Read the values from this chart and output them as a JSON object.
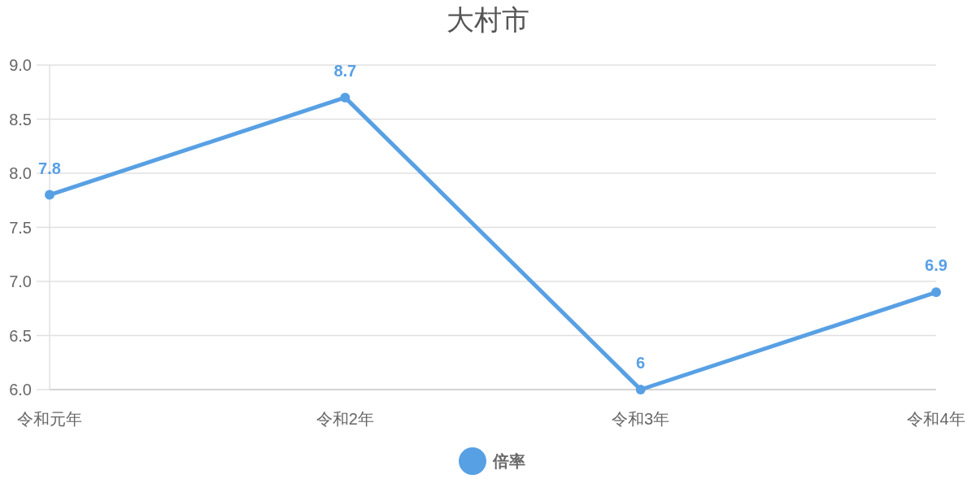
{
  "chart_data": {
    "type": "line",
    "title": "大村市",
    "categories": [
      "令和元年",
      "令和2年",
      "令和3年",
      "令和4年"
    ],
    "series": [
      {
        "name": "倍率",
        "color": "#58a0e4",
        "values": [
          7.8,
          8.7,
          6,
          6.9
        ]
      }
    ],
    "ylim": [
      6,
      9
    ],
    "yticks": [
      {
        "value": 6,
        "label": "6.0"
      },
      {
        "value": 6.5,
        "label": "6.5"
      },
      {
        "value": 7,
        "label": "7.0"
      },
      {
        "value": 7.5,
        "label": "7.5"
      },
      {
        "value": 8,
        "label": "8.0"
      },
      {
        "value": 8.5,
        "label": "8.5"
      },
      {
        "value": 9,
        "label": "9.0"
      }
    ],
    "grid": "y",
    "legend": "bottom",
    "marker": "circle",
    "line_style": "solid",
    "data_labels": true
  }
}
